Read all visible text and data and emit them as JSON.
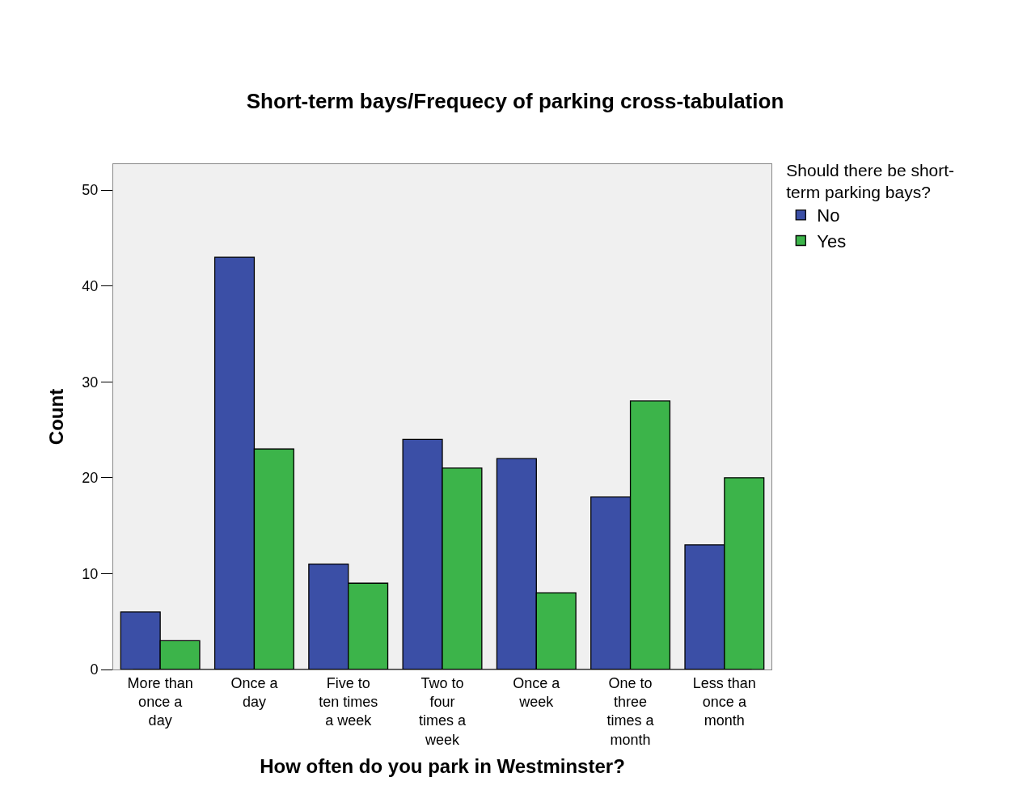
{
  "chart_data": {
    "type": "bar",
    "title": "Short-term bays/Frequecy of parking cross-tabulation",
    "xlabel": "How often do you park in Westminster?",
    "ylabel": "Count",
    "legend_title": "Should there be short-term parking bays?",
    "categories": [
      "More than once a day",
      "Once a day",
      "Five to ten times a week",
      "Two to four times a week",
      "Once a week",
      "One to three times a month",
      "Less than once a month"
    ],
    "series": [
      {
        "name": "No",
        "color": "#3b4fa6",
        "values": [
          6,
          43,
          11,
          24,
          22,
          18,
          13
        ]
      },
      {
        "name": "Yes",
        "color": "#3cb44a",
        "values": [
          3,
          23,
          9,
          21,
          8,
          28,
          20
        ]
      }
    ],
    "ylim": [
      0,
      52.7
    ],
    "yticks": [
      0,
      10,
      20,
      30,
      40,
      50
    ],
    "grid": false,
    "legend": "top right"
  }
}
